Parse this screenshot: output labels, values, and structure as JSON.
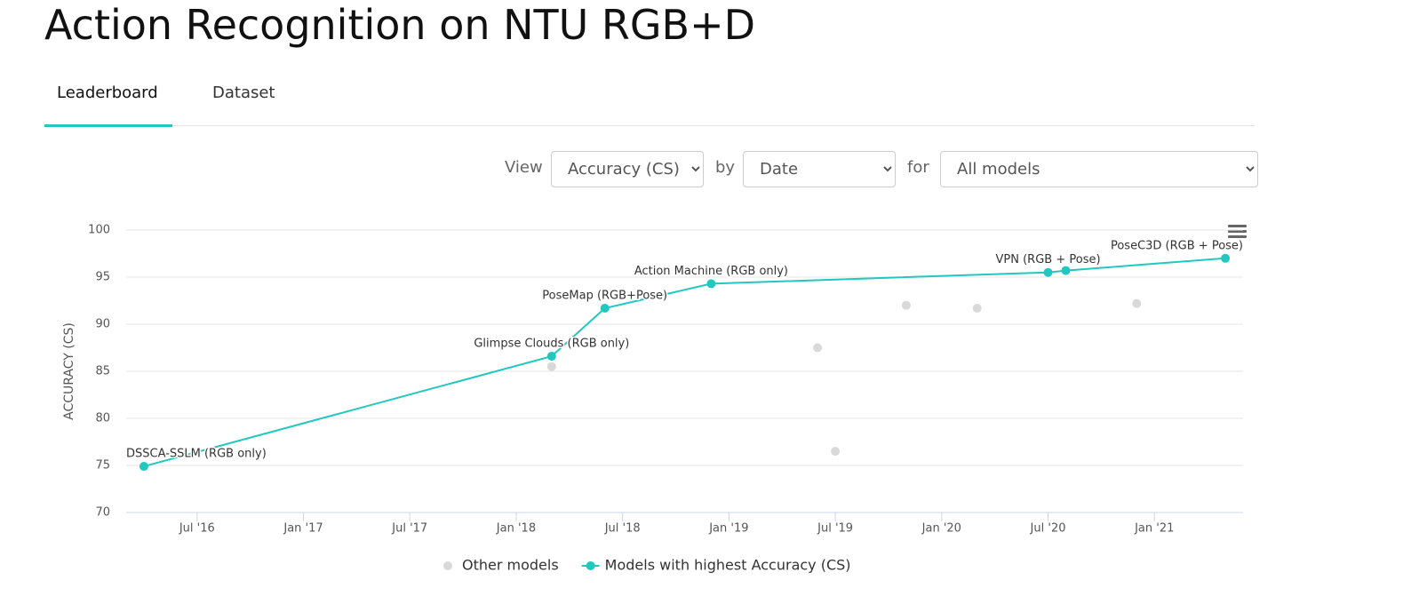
{
  "header": {
    "title": "Action Recognition on NTU RGB+D"
  },
  "tabs": [
    "Leaderboard",
    "Dataset"
  ],
  "controls": {
    "view_label": "View",
    "view_value": "Accuracy (CS)",
    "by_label": "by",
    "by_value": "Date",
    "for_label": "for",
    "for_value": "All models"
  },
  "chart_data": {
    "type": "scatter",
    "y_label": "ACCURACY (CS)",
    "xlim": [
      "2016-03",
      "2021-06"
    ],
    "xticks": [
      {
        "value": "2016-07",
        "label": "Jul '16"
      },
      {
        "value": "2017-01",
        "label": "Jan '17"
      },
      {
        "value": "2017-07",
        "label": "Jul '17"
      },
      {
        "value": "2018-01",
        "label": "Jan '18"
      },
      {
        "value": "2018-07",
        "label": "Jul '18"
      },
      {
        "value": "2019-01",
        "label": "Jan '19"
      },
      {
        "value": "2019-07",
        "label": "Jul '19"
      },
      {
        "value": "2020-01",
        "label": "Jan '20"
      },
      {
        "value": "2020-07",
        "label": "Jul '20"
      },
      {
        "value": "2021-01",
        "label": "Jan '21"
      }
    ],
    "ylim": [
      70,
      100
    ],
    "yticks": [
      70,
      75,
      80,
      85,
      90,
      95,
      100
    ],
    "grid": true,
    "legend": "bottom",
    "series": [
      {
        "name": "Other models",
        "color": "#d9d9d9",
        "mode": "markers",
        "x": [
          "2018-03",
          "2019-06",
          "2019-07",
          "2019-11",
          "2020-03",
          "2020-12"
        ],
        "values": [
          85.5,
          87.5,
          76.5,
          92.0,
          91.7,
          92.2
        ]
      },
      {
        "name": "Models with highest Accuracy (CS)",
        "color": "#21c8c0",
        "mode": "lines+markers",
        "x": [
          "2016-04",
          "2018-03",
          "2018-06",
          "2018-12",
          "2020-07",
          "2020-08",
          "2021-05"
        ],
        "values": [
          74.9,
          86.6,
          91.7,
          94.3,
          95.5,
          95.7,
          97.0
        ],
        "labels": [
          "DSSCA-SSLM (RGB only)",
          "Glimpse Clouds (RGB only)",
          "PoseMap (RGB+Pose)",
          "Action Machine (RGB only)",
          "VPN (RGB + Pose)",
          null,
          "PoseC3D (RGB + Pose)"
        ]
      }
    ]
  }
}
